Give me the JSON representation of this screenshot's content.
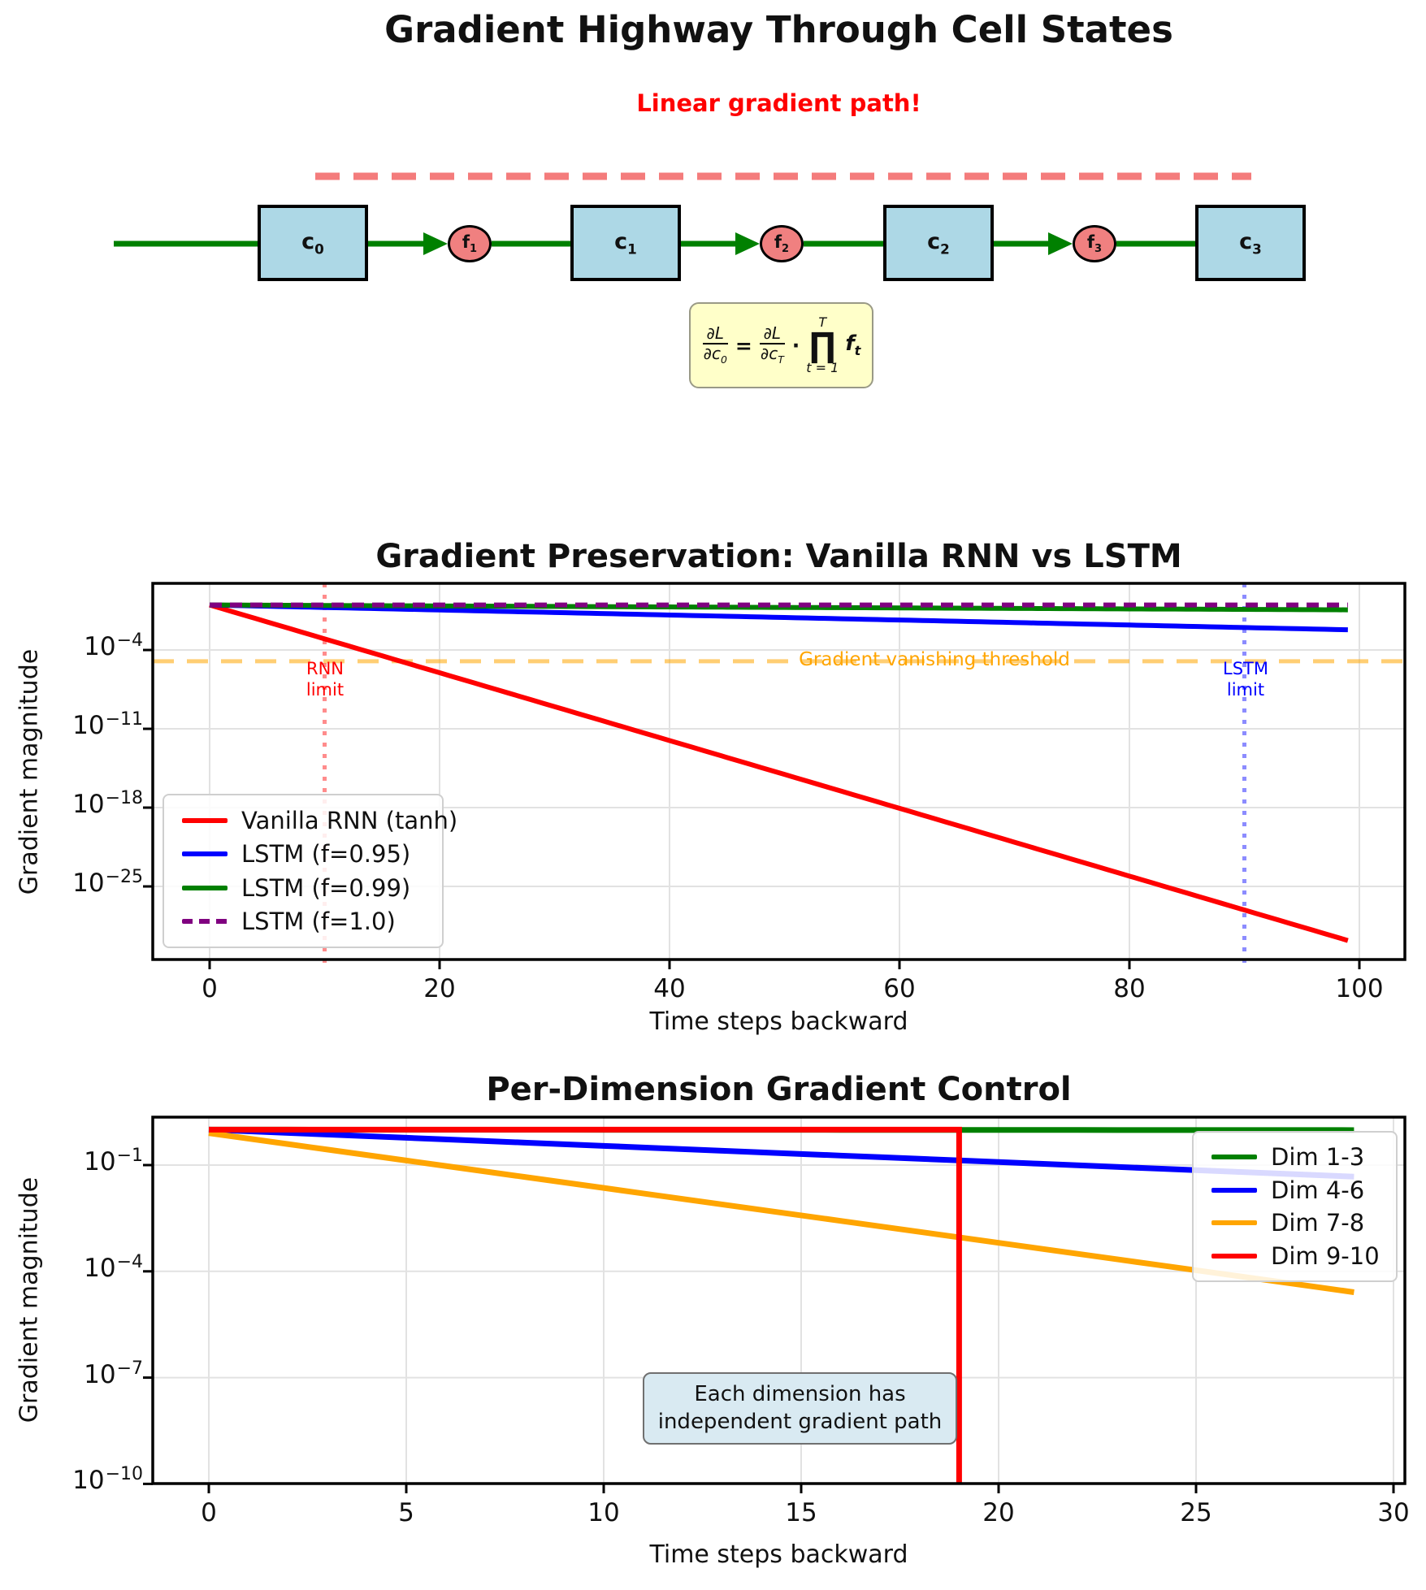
{
  "figure": {
    "title": "Gradient Highway Through Cell States"
  },
  "diagram": {
    "path_label": "Linear gradient path!",
    "path_label_color": "#ff0000",
    "cells": [
      {
        "base": "c",
        "sub": "0"
      },
      {
        "base": "c",
        "sub": "1"
      },
      {
        "base": "c",
        "sub": "2"
      },
      {
        "base": "c",
        "sub": "3"
      }
    ],
    "gates": [
      {
        "base": "f",
        "sub": "1"
      },
      {
        "base": "f",
        "sub": "2"
      },
      {
        "base": "f",
        "sub": "3"
      }
    ],
    "colors": {
      "cell_fill": "#add8e6",
      "gate_fill": "#f08080",
      "arrow": "#008000",
      "path_line": "#f47c7c",
      "formula_bg": "#ffffc9"
    },
    "formula": {
      "lhs_num": "∂L",
      "lhs_den_base": "∂c",
      "lhs_den_sub": "0",
      "equals": "=",
      "rhs_num": "∂L",
      "rhs_den_base": "∂c",
      "rhs_den_sub": "T",
      "cdot": "·",
      "prod_upper": "T",
      "prod_symbol": "∏",
      "prod_lower": "t = 1",
      "term_base": "f",
      "term_sub": "t"
    }
  },
  "chart_data": [
    {
      "type": "line",
      "title": "Gradient Preservation: Vanilla RNN vs LSTM",
      "xlabel": "Time steps backward",
      "ylabel": "Gradient magnitude",
      "x_ticks": [
        0,
        20,
        40,
        60,
        80,
        100
      ],
      "y_tick_exponents": [
        -4,
        -11,
        -18,
        -25
      ],
      "xlim": [
        -5,
        104
      ],
      "ylim": [
        1e-31,
        80
      ],
      "grid": true,
      "log_y": true,
      "x_range_steps": [
        0,
        99
      ],
      "legend_position": "lower left",
      "series": [
        {
          "name": "Vanilla RNN (tanh)",
          "color": "#ff0000",
          "start": 1.0,
          "decay_factor": 0.5,
          "dash": "solid"
        },
        {
          "name": "LSTM (f=0.95)",
          "color": "#0000ff",
          "start": 1.0,
          "decay_factor": 0.95,
          "dash": "solid"
        },
        {
          "name": "LSTM (f=0.99)",
          "color": "#008000",
          "start": 1.0,
          "decay_factor": 0.99,
          "dash": "solid"
        },
        {
          "name": "LSTM (f=1.0)",
          "color": "#800080",
          "start": 1.0,
          "decay_factor": 1.0,
          "dash": "dashed"
        }
      ],
      "annotations": {
        "threshold": {
          "label": "Gradient vanishing threshold",
          "value": 1e-05,
          "color": "#ffa500"
        },
        "rnn_limit": {
          "line1": "RNN",
          "line2": "limit",
          "x": 10,
          "color": "#ff0000"
        },
        "lstm_limit": {
          "line1": "LSTM",
          "line2": "limit",
          "x": 90,
          "color": "#0000ff"
        }
      }
    },
    {
      "type": "line",
      "title": "Per-Dimension Gradient Control",
      "xlabel": "Time steps backward",
      "ylabel": "Gradient magnitude",
      "x_ticks": [
        0,
        5,
        10,
        15,
        20,
        25,
        30
      ],
      "y_tick_exponents": [
        -1,
        -4,
        -7,
        -10
      ],
      "xlim": [
        -1.4,
        30.3
      ],
      "ylim": [
        1e-10,
        2.2
      ],
      "grid": true,
      "log_y": true,
      "x_range_steps": [
        0,
        29
      ],
      "legend_position": "upper right",
      "series": [
        {
          "name": "Dim 1-3",
          "color": "#008000",
          "start": 1.0,
          "decay_factor": 0.999,
          "dash": "solid"
        },
        {
          "name": "Dim 4-6",
          "color": "#0000ff",
          "start": 1.0,
          "decay_factor": 0.9,
          "dash": "solid"
        },
        {
          "name": "Dim 7-8",
          "color": "#ffa500",
          "start": 0.8,
          "decay_factor": 0.7,
          "dash": "solid"
        },
        {
          "name": "Dim 9-10",
          "color": "#ff0000",
          "start": 1.0,
          "decay_factor": 1.0,
          "dash": "solid",
          "cutoff_step": 19
        }
      ],
      "annotations": {
        "note": {
          "line1": "Each dimension has",
          "line2": "independent gradient path",
          "bg": "#d9eaf2"
        }
      }
    }
  ]
}
